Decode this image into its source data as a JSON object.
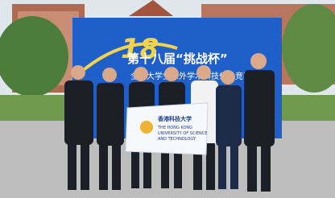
{
  "banner": {
    "logo": "18",
    "title": "第十八届“挑战杯”",
    "subtitle": "全国大学生课外学术科技作品竞赛"
  },
  "flag": {
    "chinese_name": "香港科技大学",
    "english_lines": [
      "THE HONG KONG",
      "UNIVERSITY OF SCIENCE",
      "AND TECHNOLOGY"
    ]
  }
}
